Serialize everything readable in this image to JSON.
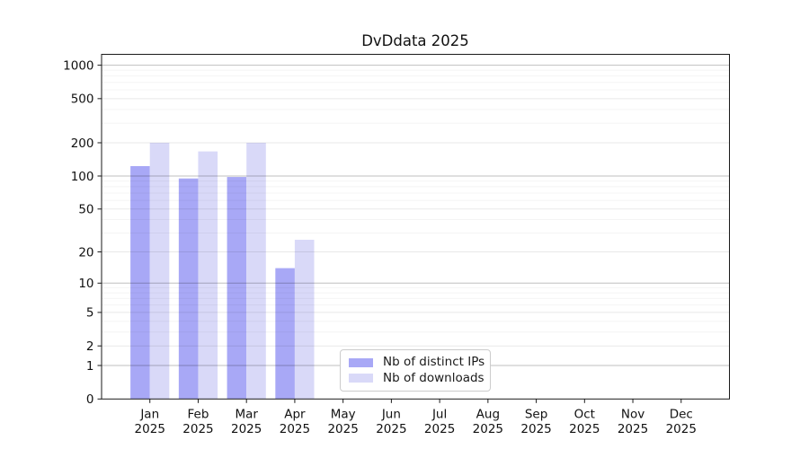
{
  "title": "DvDdata 2025",
  "chart_data": {
    "type": "bar",
    "title": "DvDdata 2025",
    "year": "2025",
    "months": [
      "Jan",
      "Feb",
      "Mar",
      "Apr",
      "May",
      "Jun",
      "Jul",
      "Aug",
      "Sep",
      "Oct",
      "Nov",
      "Dec"
    ],
    "series": [
      {
        "name": "Nb of distinct IPs",
        "color": "#a8a8f6",
        "values": [
          123,
          95,
          98,
          14,
          null,
          null,
          null,
          null,
          null,
          null,
          null,
          null
        ]
      },
      {
        "name": "Nb of downloads",
        "color": "#d9d9f8",
        "values": [
          200,
          167,
          200,
          26,
          null,
          null,
          null,
          null,
          null,
          null,
          null,
          null
        ]
      }
    ],
    "yscale": "log1p",
    "ylim": [
      0,
      1260
    ],
    "y_major_ticks": [
      0,
      1,
      2,
      5,
      10,
      20,
      50,
      100,
      200,
      500,
      1000
    ],
    "y_decade_lines": [
      1,
      10,
      100,
      1000
    ],
    "y_mid_lines": [
      2,
      5,
      20,
      50,
      200,
      500
    ],
    "y_minor_lines": [
      3,
      4,
      6,
      7,
      8,
      9,
      30,
      40,
      60,
      70,
      80,
      90,
      300,
      400,
      600,
      700,
      800,
      900
    ],
    "grid": true,
    "legend_position": "lower-center",
    "colors": {
      "spine": "#1a1a1a",
      "grid_decade": "rgba(0,0,0,0.25)",
      "grid_mid": "rgba(0,0,0,0.09)",
      "grid_minor": "rgba(0,0,0,0.045)"
    }
  }
}
